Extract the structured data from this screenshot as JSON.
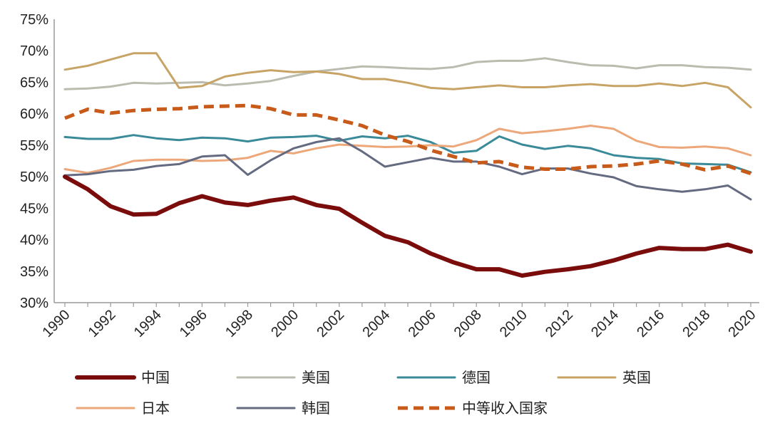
{
  "chart_data": {
    "type": "line",
    "title": "",
    "xlabel": "",
    "ylabel": "",
    "ylim": [
      30,
      75
    ],
    "xlim": [
      1990,
      2020
    ],
    "y_ticks": [
      "30%",
      "35%",
      "40%",
      "45%",
      "50%",
      "55%",
      "60%",
      "65%",
      "70%",
      "75%"
    ],
    "y_tick_values": [
      30,
      35,
      40,
      45,
      50,
      55,
      60,
      65,
      70,
      75
    ],
    "x_ticks": [
      "1990",
      "1992",
      "1994",
      "1996",
      "1998",
      "2000",
      "2002",
      "2004",
      "2006",
      "2008",
      "2010",
      "2012",
      "2014",
      "2016",
      "2018",
      "2020"
    ],
    "x_tick_values": [
      1990,
      1992,
      1994,
      1996,
      1998,
      2000,
      2002,
      2004,
      2006,
      2008,
      2010,
      2012,
      2014,
      2016,
      2018,
      2020
    ],
    "grid": false,
    "legend_position": "bottom",
    "x": [
      1990,
      1991,
      1992,
      1993,
      1994,
      1995,
      1996,
      1997,
      1998,
      1999,
      2000,
      2001,
      2002,
      2003,
      2004,
      2005,
      2006,
      2007,
      2008,
      2009,
      2010,
      2011,
      2012,
      2013,
      2014,
      2015,
      2016,
      2017,
      2018,
      2019,
      2020
    ],
    "series": [
      {
        "name": "中国",
        "color": "#7a0c0c",
        "dash": "solid",
        "width": 6,
        "values": [
          50.0,
          48.0,
          45.3,
          44.0,
          44.1,
          45.8,
          46.9,
          45.9,
          45.5,
          46.2,
          46.7,
          45.5,
          44.9,
          42.7,
          40.6,
          39.6,
          37.8,
          36.4,
          35.3,
          35.3,
          34.3,
          34.9,
          35.3,
          35.8,
          36.7,
          37.8,
          38.7,
          38.5,
          38.5,
          39.2,
          38.1
        ]
      },
      {
        "name": "美国",
        "color": "#bbbcaf",
        "dash": "solid",
        "width": 3,
        "values": [
          63.9,
          64.0,
          64.3,
          64.9,
          64.8,
          64.9,
          65.0,
          64.5,
          64.8,
          65.2,
          66.0,
          66.7,
          67.1,
          67.5,
          67.4,
          67.2,
          67.1,
          67.4,
          68.2,
          68.4,
          68.4,
          68.8,
          68.2,
          67.7,
          67.6,
          67.2,
          67.7,
          67.7,
          67.4,
          67.3,
          67.0
        ]
      },
      {
        "name": "德国",
        "color": "#3a8a99",
        "dash": "solid",
        "width": 3,
        "values": [
          56.3,
          56.0,
          56.0,
          56.6,
          56.1,
          55.8,
          56.2,
          56.1,
          55.6,
          56.2,
          56.3,
          56.5,
          55.7,
          56.4,
          56.1,
          56.5,
          55.5,
          53.8,
          54.1,
          56.4,
          55.1,
          54.4,
          54.9,
          54.5,
          53.4,
          53.0,
          52.8,
          52.1,
          52.0,
          51.9,
          50.7
        ]
      },
      {
        "name": "英国",
        "color": "#c7a466",
        "dash": "solid",
        "width": 3,
        "values": [
          67.0,
          67.6,
          68.6,
          69.6,
          69.6,
          64.1,
          64.4,
          65.9,
          66.5,
          66.9,
          66.6,
          66.7,
          66.3,
          65.5,
          65.5,
          64.9,
          64.1,
          63.9,
          64.2,
          64.5,
          64.2,
          64.2,
          64.5,
          64.7,
          64.4,
          64.4,
          64.8,
          64.4,
          64.9,
          64.2,
          61.0
        ]
      },
      {
        "name": "日本",
        "color": "#eca77a",
        "dash": "solid",
        "width": 3,
        "values": [
          51.2,
          50.6,
          51.4,
          52.5,
          52.7,
          52.7,
          52.5,
          52.6,
          53.0,
          54.1,
          53.7,
          54.5,
          55.1,
          54.9,
          54.7,
          54.8,
          55.0,
          54.8,
          55.8,
          57.6,
          56.9,
          57.2,
          57.6,
          58.1,
          57.6,
          55.7,
          54.7,
          54.6,
          54.8,
          54.5,
          53.4
        ]
      },
      {
        "name": "韩国",
        "color": "#646a80",
        "dash": "solid",
        "width": 3,
        "values": [
          50.2,
          50.4,
          50.9,
          51.1,
          51.7,
          52.0,
          53.2,
          53.4,
          50.3,
          52.6,
          54.5,
          55.5,
          56.1,
          54.0,
          51.6,
          52.3,
          53.0,
          52.4,
          52.4,
          51.6,
          50.4,
          51.3,
          51.3,
          50.5,
          49.9,
          48.5,
          48.0,
          47.6,
          48.0,
          48.6,
          46.4
        ]
      },
      {
        "name": "中等收入国家",
        "color": "#c85a1a",
        "dash": "dashed",
        "width": 5,
        "values": [
          59.3,
          60.7,
          60.1,
          60.5,
          60.7,
          60.8,
          61.1,
          61.2,
          61.3,
          60.8,
          59.8,
          59.8,
          59.0,
          58.1,
          56.6,
          55.6,
          54.2,
          53.2,
          52.2,
          52.4,
          51.5,
          51.2,
          51.2,
          51.6,
          51.7,
          52.0,
          52.5,
          52.0,
          51.1,
          51.7,
          50.5
        ]
      }
    ]
  }
}
